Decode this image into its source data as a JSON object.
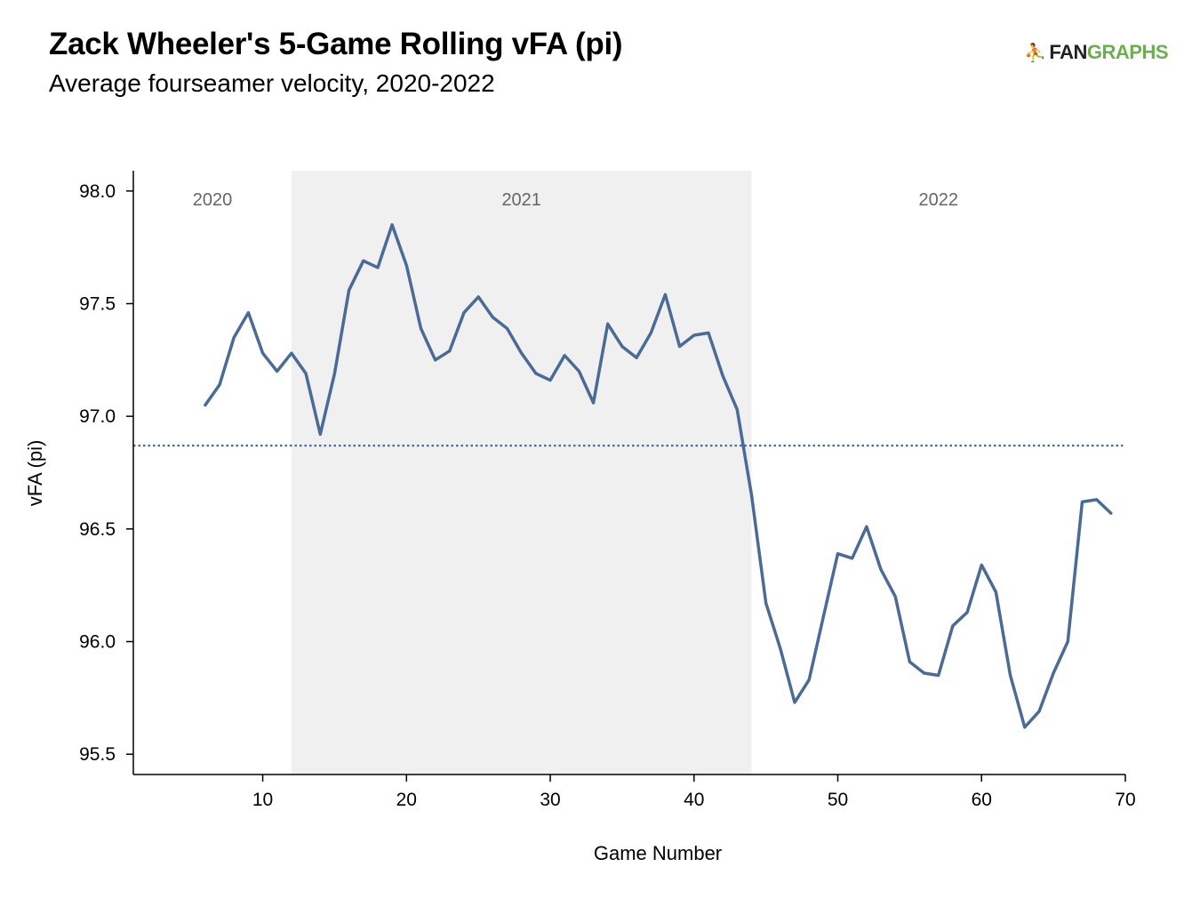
{
  "header": {
    "title": "Zack Wheeler's 5-Game Rolling vFA (pi)",
    "subtitle": "Average fourseamer velocity, 2020-2022"
  },
  "logo": {
    "icon": "fangraphs-logo-icon",
    "part1": "FAN",
    "part2": "GRAPHS",
    "color_dark": "#222222",
    "color_green": "#6ab04c"
  },
  "chart_data": {
    "type": "line",
    "xlabel": "Game Number",
    "ylabel": "vFA (pi)",
    "xlim": [
      1,
      70
    ],
    "ylim": [
      95.41,
      98.09
    ],
    "xticks": [
      10,
      20,
      30,
      40,
      50,
      60,
      70
    ],
    "yticks": [
      95.5,
      96.0,
      96.5,
      97.0,
      97.5,
      98.0
    ],
    "ytick_labels": [
      "95.5",
      "96.0",
      "96.5",
      "97.0",
      "97.5",
      "98.0"
    ],
    "grid": false,
    "line_color": "#4a6b96",
    "reference_line": {
      "y": 96.87,
      "style": "dotted",
      "color": "#4a6b96"
    },
    "regions": [
      {
        "label": "2020",
        "x_start": 1,
        "x_end": 12,
        "shaded": false
      },
      {
        "label": "2021",
        "x_start": 12,
        "x_end": 44,
        "shaded": true,
        "color": "#f0f0f0"
      },
      {
        "label": "2022",
        "x_start": 44,
        "x_end": 70,
        "shaded": false
      }
    ],
    "series": [
      {
        "x": [
          6,
          7,
          8,
          9,
          10,
          11,
          12,
          13,
          14,
          15,
          16,
          17,
          18,
          19,
          20,
          21,
          22,
          23,
          24,
          25,
          26,
          27,
          28,
          29,
          30,
          31,
          32,
          33,
          34,
          35,
          36,
          37,
          38,
          39,
          40,
          41,
          42,
          43,
          44,
          45,
          46,
          47,
          48,
          49,
          50,
          51,
          52,
          53,
          54,
          55,
          56,
          57,
          58,
          59,
          60,
          61,
          62,
          63,
          64,
          65,
          66,
          67,
          68,
          69
        ],
        "values": [
          97.05,
          97.14,
          97.35,
          97.46,
          97.28,
          97.2,
          97.28,
          97.19,
          96.92,
          97.19,
          97.56,
          97.69,
          97.66,
          97.85,
          97.67,
          97.39,
          97.25,
          97.29,
          97.46,
          97.53,
          97.44,
          97.39,
          97.28,
          97.19,
          97.16,
          97.27,
          97.2,
          97.06,
          97.41,
          97.31,
          97.26,
          97.37,
          97.54,
          97.31,
          97.36,
          97.37,
          97.18,
          97.03,
          96.65,
          96.17,
          95.97,
          95.73,
          95.83,
          96.11,
          96.39,
          96.37,
          96.51,
          96.32,
          96.2,
          95.91,
          95.86,
          95.85,
          96.07,
          96.13,
          96.34,
          96.22,
          95.85,
          95.62,
          95.69,
          95.86,
          96.0,
          96.62,
          96.63,
          96.57
        ]
      }
    ]
  }
}
